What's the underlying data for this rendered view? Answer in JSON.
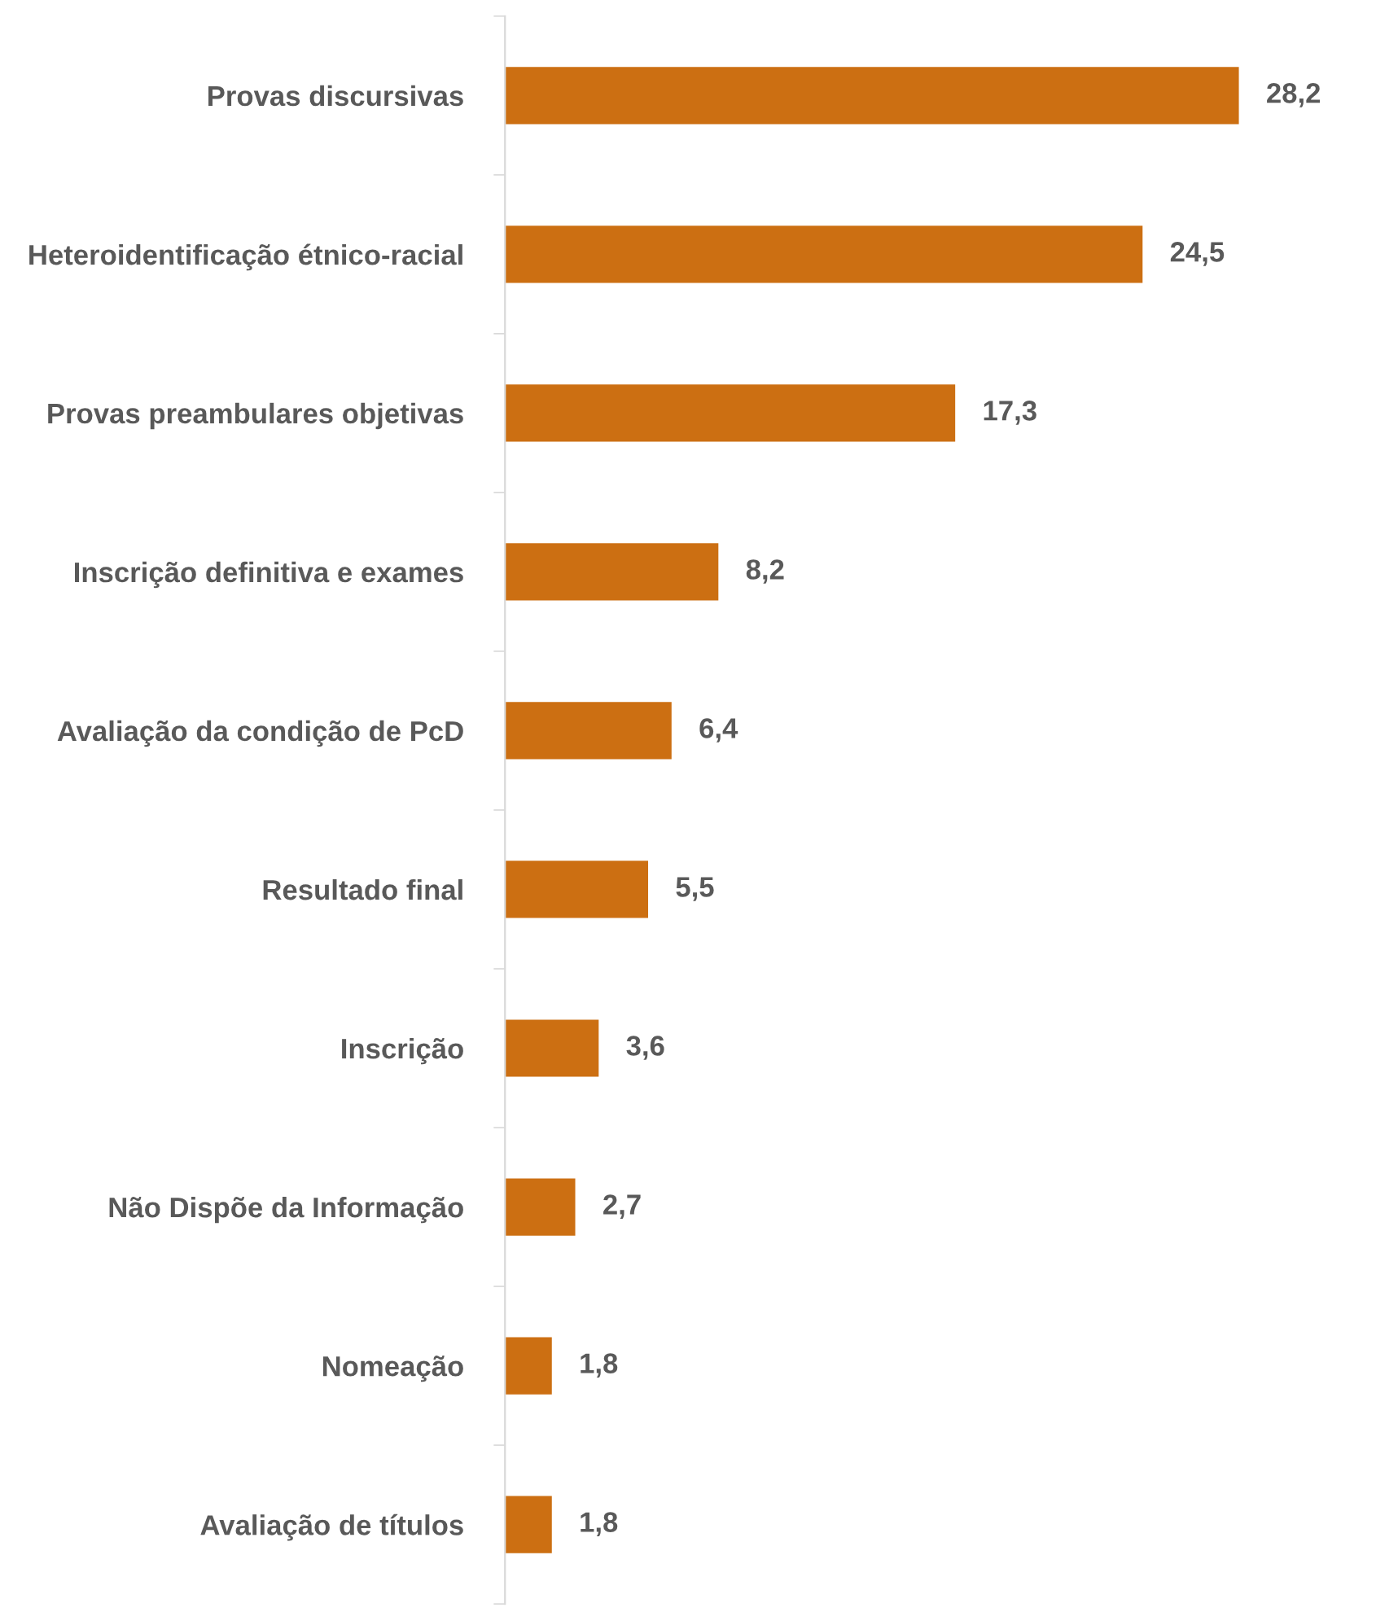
{
  "chart_data": {
    "type": "bar",
    "orientation": "horizontal",
    "categories": [
      "Provas discursivas",
      "Heteroidentificação étnico-racial",
      "Provas preambulares objetivas",
      "Inscrição definitiva e exames",
      "Avaliação da condição de PcD",
      "Resultado final",
      "Inscrição",
      "Não Dispõe da Informação",
      "Nomeação",
      "Avaliação de títulos"
    ],
    "values": [
      28.2,
      24.5,
      17.3,
      8.2,
      6.4,
      5.5,
      3.6,
      2.7,
      1.8,
      1.8
    ],
    "value_labels": [
      "28,2",
      "24,5",
      "17,3",
      "8,2",
      "6,4",
      "5,5",
      "3,6",
      "2,7",
      "1,8",
      "1,8"
    ],
    "color": "#cc6f12",
    "grid": false,
    "legend": false,
    "tick_labels": "y"
  }
}
